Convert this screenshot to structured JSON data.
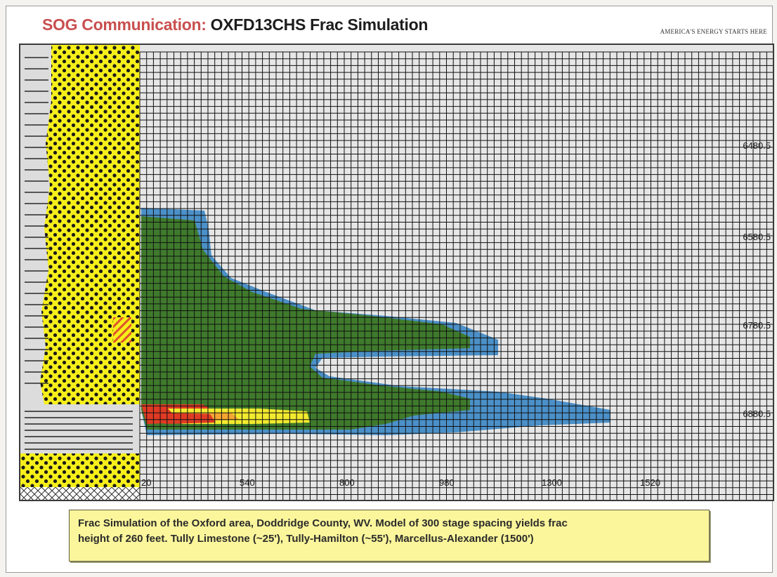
{
  "header": {
    "title_prefix": "SOG Communication:",
    "title_rest": "OXFD13CHS Frac Simulation",
    "tagline": "AMERICA'S ENERGY STARTS HERE"
  },
  "plot": {
    "x_ticks": [
      "20",
      "540",
      "800",
      "980",
      "1300",
      "1520"
    ],
    "y_ticks": [
      "6480.5",
      "6580.5",
      "6780.5",
      "6880.5"
    ]
  },
  "colors": {
    "background": "#e6e6e6",
    "grid": "#101010",
    "lithology_yellow": "#f6ef1a",
    "frac_green": "#3f7a2c",
    "frac_blue": "#4b90c8",
    "frac_red": "#e03a24",
    "frac_orange": "#f5a531",
    "frac_yellow": "#f2ea2e",
    "caption_fill": "#fbf69b"
  },
  "caption": {
    "line1": "Frac Simulation of the Oxford area, Doddridge County, WV.    Model of 300 stage spacing yields frac",
    "line2": "height of 260 feet.    Tully Limestone (~25'),  Tully-Hamilton (~55'), Marcellus-Alexander (1500')"
  }
}
